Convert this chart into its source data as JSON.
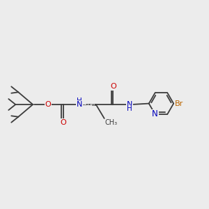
{
  "bg_color": "#ececec",
  "bond_color": "#3c3c3c",
  "bond_width": 1.3,
  "colors": {
    "O": "#cc0000",
    "N": "#0000bb",
    "Br": "#bb6600",
    "C": "#3c3c3c"
  },
  "font_size": 8.0,
  "fig_size": [
    3.0,
    3.0
  ],
  "dpi": 100,
  "xlim": [
    0.0,
    10.5
  ],
  "ylim": [
    3.2,
    6.8
  ]
}
